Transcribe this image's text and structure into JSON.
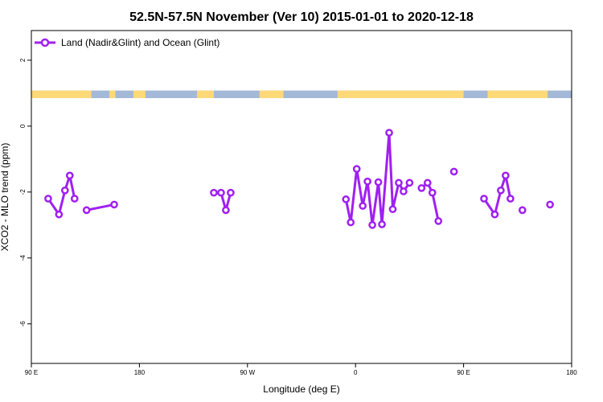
{
  "chart_data": {
    "type": "line",
    "title": "52.5N-57.5N November (Ver 10)   2015-01-01 to 2020-12-18",
    "xlabel": "Longitude (deg E)",
    "ylabel": "XCO2 - MLO trend (ppm)",
    "xlim": [
      90,
      540
    ],
    "ylim": [
      -7.2,
      2.9
    ],
    "x_ticks": [
      {
        "value": 90,
        "label": "90 E"
      },
      {
        "value": 180,
        "label": "180"
      },
      {
        "value": 270,
        "label": "90 W"
      },
      {
        "value": 360,
        "label": "0"
      },
      {
        "value": 450,
        "label": "90 E"
      },
      {
        "value": 540,
        "label": "180"
      }
    ],
    "y_ticks": [
      {
        "value": 2,
        "label": "2"
      },
      {
        "value": 0,
        "label": "0"
      },
      {
        "value": -2,
        "label": "-2"
      },
      {
        "value": -4,
        "label": "-4"
      },
      {
        "value": -6,
        "label": "-6"
      }
    ],
    "legend": {
      "position": "top-left",
      "entries": [
        "Land (Nadir&Glint) and Ocean (Glint)"
      ]
    },
    "colors": {
      "series": "#a020f0",
      "land": "#ffd878",
      "ocean": "#a4b8d8"
    },
    "land_ocean_strip": {
      "y_range": [
        0.85,
        1.08
      ],
      "land_lon_intervals": [
        [
          90,
          140
        ],
        [
          155,
          160
        ],
        [
          175,
          185
        ],
        [
          228,
          242
        ],
        [
          280,
          300
        ],
        [
          345,
          450
        ],
        [
          470,
          520
        ]
      ]
    },
    "series": [
      {
        "name": "Land (Nadir&Glint) and Ocean (Glint)",
        "segments": [
          [
            [
              104,
              -2.2
            ],
            [
              113,
              -2.68
            ],
            [
              118,
              -1.95
            ],
            [
              122,
              -1.5
            ],
            [
              126,
              -2.2
            ]
          ],
          [
            [
              136,
              -2.55
            ],
            [
              159,
              -2.38
            ]
          ],
          [
            [
              242,
              -2.02
            ],
            [
              248,
              -2.02
            ],
            [
              252,
              -2.55
            ],
            [
              256,
              -2.02
            ]
          ],
          [
            [
              352,
              -2.22
            ],
            [
              356,
              -2.92
            ],
            [
              361,
              -1.3
            ],
            [
              366,
              -2.42
            ],
            [
              370,
              -1.68
            ],
            [
              374,
              -3.0
            ],
            [
              379,
              -1.7
            ],
            [
              382,
              -2.98
            ],
            [
              388,
              -0.2
            ],
            [
              391,
              -2.52
            ],
            [
              396,
              -1.72
            ],
            [
              400,
              -1.98
            ],
            [
              405,
              -1.72
            ]
          ],
          [
            [
              415,
              -1.88
            ],
            [
              420,
              -1.72
            ],
            [
              424,
              -2.02
            ],
            [
              429,
              -2.88
            ]
          ],
          [
            [
              442,
              -1.38
            ]
          ],
          [
            [
              467,
              -2.2
            ],
            [
              476,
              -2.68
            ],
            [
              481,
              -1.95
            ],
            [
              485,
              -1.5
            ],
            [
              489,
              -2.2
            ]
          ],
          [
            [
              499,
              -2.55
            ]
          ],
          [
            [
              522,
              -2.38
            ]
          ]
        ]
      }
    ]
  }
}
